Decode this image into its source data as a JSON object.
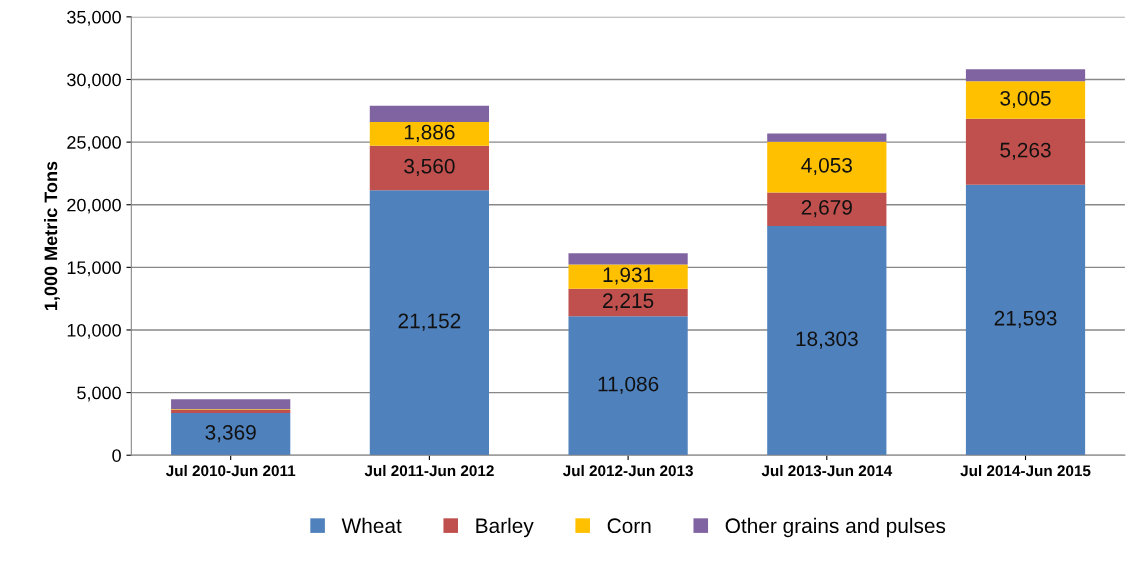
{
  "chart_data": {
    "type": "bar",
    "stacked": true,
    "ylabel": "1,000 Metric Tons",
    "categories": [
      "Jul 2010-Jun 2011",
      "Jul 2011-Jun 2012",
      "Jul 2012-Jun 2013",
      "Jul 2013-Jun 2014",
      "Jul 2014-Jun 2015"
    ],
    "series": [
      {
        "name": "Wheat",
        "color": "#4f81bd",
        "values": [
          3369,
          21152,
          11086,
          18303,
          21593
        ],
        "value_labels": [
          "3,369",
          "21,152",
          "11,086",
          "18,303",
          "21,593"
        ]
      },
      {
        "name": "Barley",
        "color": "#c0504d",
        "values": [
          250,
          3560,
          2215,
          2679,
          5263
        ],
        "value_labels": [
          null,
          "3,560",
          "2,215",
          "2,679",
          "5,263"
        ]
      },
      {
        "name": "Corn",
        "color": "#ffc000",
        "values": [
          50,
          1886,
          1931,
          4053,
          3005
        ],
        "value_labels": [
          null,
          "1,886",
          "1,931",
          "4,053",
          "3,005"
        ]
      },
      {
        "name": "Other grains and pulses",
        "color": "#8064a2",
        "values": [
          800,
          1300,
          900,
          650,
          950
        ],
        "value_labels": [
          null,
          null,
          null,
          null,
          null
        ]
      }
    ],
    "ylim": [
      0,
      35000
    ],
    "yticks": [
      0,
      {
        "value": 5000,
        "label": "5,000"
      },
      {
        "value": 10000,
        "label": "10,000"
      },
      {
        "value": 15000,
        "label": "15,000"
      },
      {
        "value": 20000,
        "label": "20,000"
      },
      {
        "value": 25000,
        "label": "25,000"
      },
      {
        "value": 30000,
        "label": "30,000"
      },
      {
        "value": 35000,
        "label": "35,000"
      }
    ],
    "grid": "y",
    "legend": "bottom"
  }
}
